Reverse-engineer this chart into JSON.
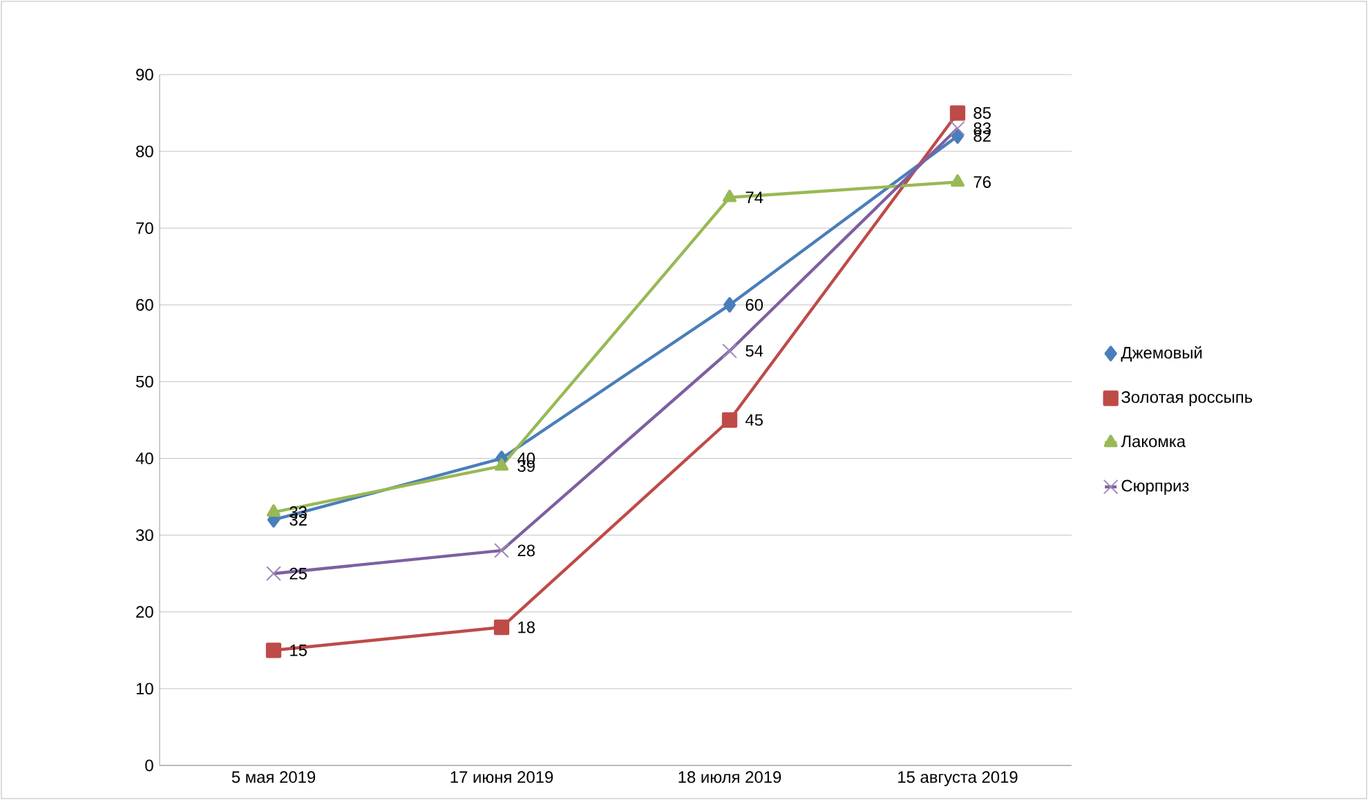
{
  "chart_data": {
    "type": "line",
    "categories": [
      "5 мая 2019",
      "17 июня 2019",
      "18 июля 2019",
      "15 августа 2019"
    ],
    "series": [
      {
        "name": "Джемовый",
        "color": "#4a7ebb",
        "marker": "diamond",
        "values": [
          32,
          40,
          60,
          82
        ]
      },
      {
        "name": "Золотая россыпь",
        "color": "#be4b48",
        "marker": "square",
        "values": [
          15,
          18,
          45,
          85
        ]
      },
      {
        "name": "Лакомка",
        "color": "#98b954",
        "marker": "triangle",
        "values": [
          33,
          39,
          74,
          76
        ]
      },
      {
        "name": "Сюрприз",
        "color": "#7d60a0",
        "marker": "cross",
        "values": [
          25,
          28,
          54,
          83
        ]
      }
    ],
    "ylim": [
      0,
      90
    ],
    "yticks": [
      0,
      10,
      20,
      30,
      40,
      50,
      60,
      70,
      80,
      90
    ],
    "grid": "y",
    "legend": "right",
    "data_labels": true
  }
}
